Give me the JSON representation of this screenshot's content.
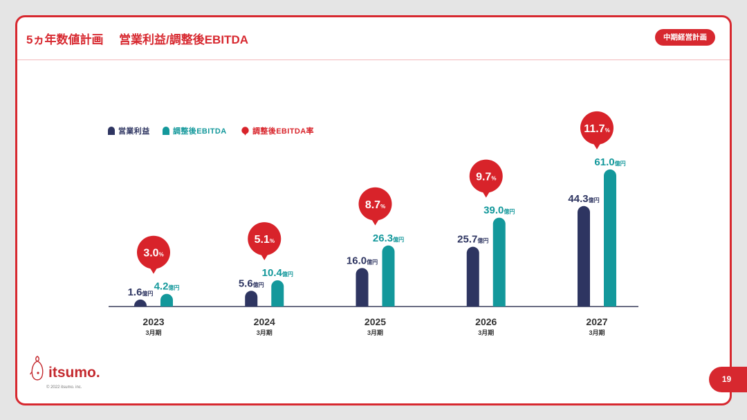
{
  "header": {
    "title": "5ヵ年数値計画",
    "subtitle": "営業利益/調整後EBITDA",
    "badge": "中期経営計画"
  },
  "footer": {
    "logo_text": "itsumo.",
    "copyright": "© 2022 itsumo. inc.",
    "page_number": "19"
  },
  "colors": {
    "brand_red": "#d7282f"
  },
  "chart_data": {
    "type": "bar",
    "categories": [
      "2023",
      "2024",
      "2025",
      "2026",
      "2027"
    ],
    "category_sublabel": "3月期",
    "unit": "億円",
    "series": [
      {
        "name": "営業利益",
        "values": [
          1.6,
          5.6,
          16.0,
          25.7,
          44.3
        ],
        "color": "#2e3561"
      },
      {
        "name": "調整後EBITDA",
        "values": [
          4.2,
          10.4,
          26.3,
          39.0,
          61.0
        ],
        "color": "#13989b"
      }
    ],
    "rate_series": {
      "name": "調整後EBITDA率",
      "values": [
        3.0,
        5.1,
        8.7,
        9.7,
        11.7
      ],
      "unit": "%",
      "color": "#d8232a"
    },
    "legend_position": "top-left",
    "grid": false
  }
}
